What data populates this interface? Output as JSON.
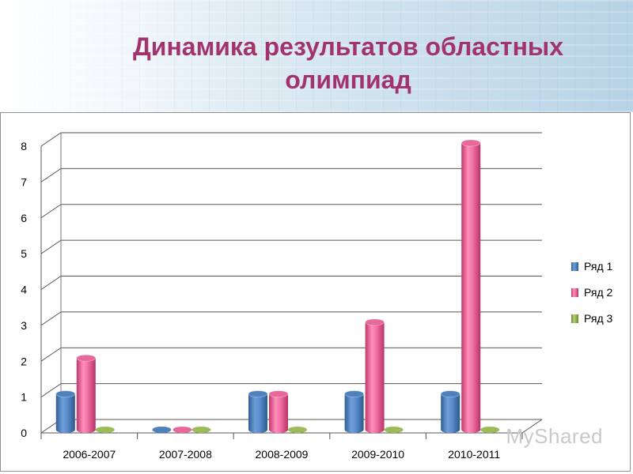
{
  "slide": {
    "title_line1": "Динамика результатов областных",
    "title_line2": "олимпиад"
  },
  "watermark": "MyShared",
  "chart_data": {
    "type": "bar",
    "categories": [
      "2006-2007",
      "2007-2008",
      "2008-2009",
      "2009-2010",
      "2010-2011"
    ],
    "series": [
      {
        "name": "Ряд 1",
        "color": "#4f81bd",
        "values": [
          1,
          0,
          1,
          1,
          1
        ]
      },
      {
        "name": "Ряд 2",
        "color": "#e8689a",
        "values": [
          2,
          0,
          1,
          3,
          8
        ]
      },
      {
        "name": "Ряд 3",
        "color": "#9bbb59",
        "values": [
          0,
          0,
          0,
          0,
          0
        ]
      }
    ],
    "ylim": [
      0,
      8
    ],
    "yticks": [
      0,
      1,
      2,
      3,
      4,
      5,
      6,
      7,
      8
    ],
    "grid": true,
    "legend": "right"
  }
}
